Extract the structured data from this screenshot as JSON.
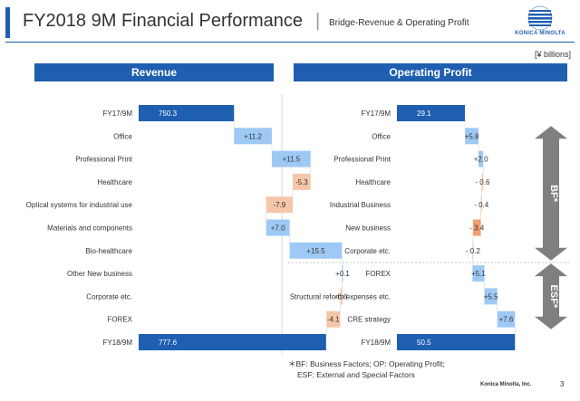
{
  "header": {
    "title": "FY2018 9M Financial Performance",
    "separator": "|",
    "subtitle": "Bridge-Revenue & Operating Profit"
  },
  "brand": {
    "logo_text": "KONICA MINOLTA",
    "footer_company": "Konica Minolta, Inc.",
    "page_number": "3"
  },
  "unit": "[¥ billions]",
  "colors": {
    "total": "#1f5fb0",
    "increase": "#9ec9f5",
    "decrease": "#f5c7a8",
    "decrease_strong": "#f0a070",
    "arrow": "#7f7f7f",
    "header": "#1f5fb0"
  },
  "chart_data": [
    {
      "type": "bar",
      "subtype": "waterfall",
      "title": "Revenue",
      "categories": [
        "FY17/9M",
        "Office",
        "Professional Print",
        "Healthcare",
        "Optical systems for industrial use",
        "Materials and components",
        "Bio-healthcare",
        "Other New business",
        "Corporate etc.",
        "FOREX",
        "FY18/9M"
      ],
      "values": [
        750.3,
        11.2,
        11.5,
        -5.3,
        -7.9,
        7.0,
        15.5,
        0.1,
        -0.6,
        -4.1,
        777.6
      ],
      "labels": [
        "750.3",
        "+11.2",
        "+11.5",
        "-5.3",
        "-7.9",
        "+7.0",
        "+15.5",
        "+0.1",
        "-0.6",
        "-4.1",
        "777.6"
      ],
      "kinds": [
        "total",
        "delta",
        "delta",
        "delta",
        "delta",
        "delta",
        "delta",
        "delta",
        "delta",
        "delta",
        "total"
      ]
    },
    {
      "type": "bar",
      "subtype": "waterfall",
      "title": "Operating Profit",
      "categories": [
        "FY17/9M",
        "Office",
        "Professional Print",
        "Healthcare",
        "Industrial Business",
        "New business",
        "Corporate etc.",
        "FOREX",
        "Structural reform expenses etc.",
        "CRE strategy",
        "FY18/9M"
      ],
      "values": [
        29.1,
        5.8,
        2.0,
        -0.6,
        -0.4,
        -3.4,
        -0.2,
        5.1,
        5.5,
        7.6,
        50.5
      ],
      "labels": [
        "29.1",
        "+5.8",
        "+2.0",
        "- 0.6",
        "- 0.4",
        "- 3.4",
        "- 0.2",
        "+5.1",
        "+5.5",
        "+7.6",
        "50.5"
      ],
      "kinds": [
        "total",
        "delta",
        "delta",
        "delta",
        "delta",
        "delta",
        "delta",
        "delta",
        "delta",
        "delta",
        "total"
      ],
      "annotations": [
        {
          "label": "BF*",
          "from_category": "Office",
          "to_category": "Corporate etc."
        },
        {
          "label": "ESF*",
          "from_category": "FOREX",
          "to_category": "CRE strategy"
        }
      ]
    }
  ],
  "footnote": {
    "line1": "＊BF: Business Factors; OP: Operating Profit;",
    "line2": "ESF: External and Special Factors"
  }
}
